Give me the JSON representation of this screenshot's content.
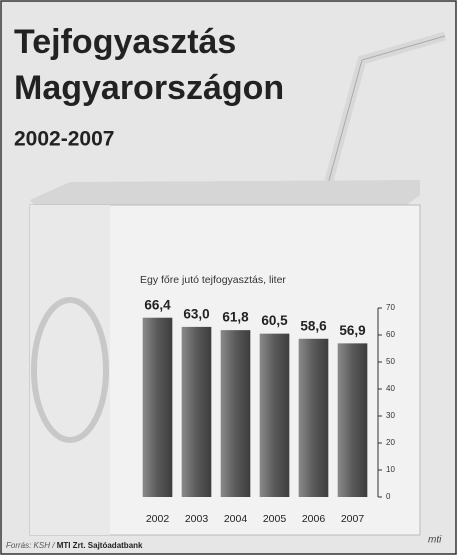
{
  "chart_data": {
    "type": "bar",
    "title": "Tejfogyasztás Magyarországon",
    "subtitle": "2002-2007",
    "y_label": "Egy főre jutó tejfogyasztás, liter",
    "categories": [
      "2002",
      "2003",
      "2004",
      "2005",
      "2006",
      "2007"
    ],
    "values": [
      66.4,
      63.0,
      61.8,
      60.5,
      58.6,
      56.9
    ],
    "value_labels": [
      "66,4",
      "63,0",
      "61,8",
      "60,5",
      "58,6",
      "56,9"
    ],
    "color": "#6e6e6e",
    "ylim": [
      0,
      70
    ],
    "yticks": [
      0,
      10,
      20,
      30,
      40,
      50,
      60,
      70
    ],
    "grid": false,
    "source": {
      "prefix": "Forrás: KSH /",
      "agency": "MTI Zrt. Sajtóadatbank"
    },
    "logo": "mti"
  }
}
